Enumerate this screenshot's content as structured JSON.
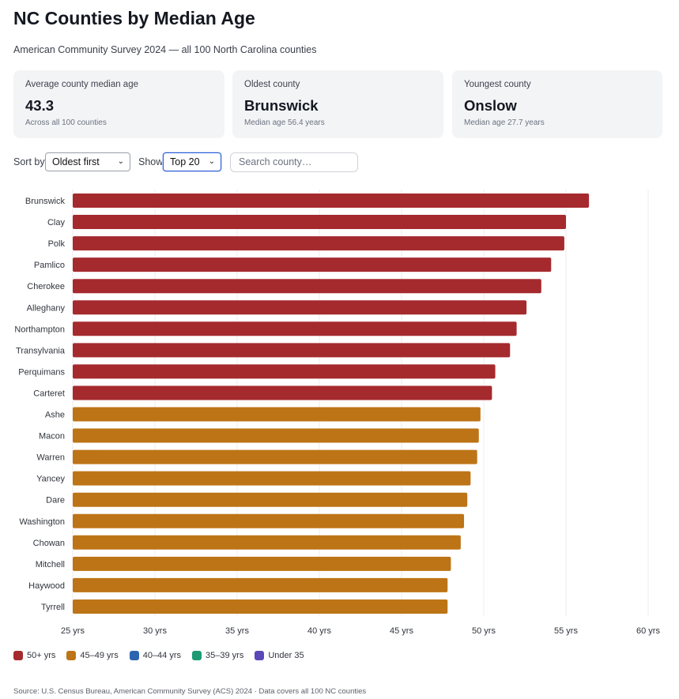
{
  "header": {
    "title": "NC Counties by Median Age",
    "subtitle": "American Community Survey 2024 — all 100 North Carolina counties"
  },
  "cards": [
    {
      "label": "Average county median age",
      "value": "43.3",
      "note": "Across all 100 counties"
    },
    {
      "label": "Oldest county",
      "value": "Brunswick",
      "note": "Median age 56.4 years"
    },
    {
      "label": "Youngest county",
      "value": "Onslow",
      "note": "Median age 27.7 years"
    }
  ],
  "controls": {
    "sort_label": "Sort by",
    "sort_value": "Oldest first",
    "show_label": "Show",
    "show_value": "Top 20",
    "search_placeholder": "Search county…"
  },
  "chart_data": {
    "type": "bar",
    "orientation": "horizontal",
    "categories": [
      "Brunswick",
      "Clay",
      "Polk",
      "Pamlico",
      "Cherokee",
      "Alleghany",
      "Northampton",
      "Transylvania",
      "Perquimans",
      "Carteret",
      "Ashe",
      "Macon",
      "Warren",
      "Yancey",
      "Dare",
      "Washington",
      "Chowan",
      "Mitchell",
      "Haywood",
      "Tyrrell"
    ],
    "values": [
      56.4,
      55.0,
      54.9,
      54.1,
      53.5,
      52.6,
      52.0,
      51.6,
      50.7,
      50.5,
      49.8,
      49.7,
      49.6,
      49.2,
      49.0,
      48.8,
      48.6,
      48.0,
      47.8,
      47.8
    ],
    "xlim": [
      25,
      60
    ],
    "xticks": [
      25,
      30,
      35,
      40,
      45,
      50,
      55,
      60
    ],
    "tick_suffix": " yrs",
    "grid": "vertical"
  },
  "legend": [
    {
      "label": "50+ yrs",
      "color": "#a52a2e",
      "min": 50
    },
    {
      "label": "45–49 yrs",
      "color": "#bd7416",
      "min": 45
    },
    {
      "label": "40–44 yrs",
      "color": "#2c64b0",
      "min": 40
    },
    {
      "label": "35–39 yrs",
      "color": "#1d9a74",
      "min": 35
    },
    {
      "label": "Under 35",
      "color": "#5a48b8",
      "min": 0
    }
  ],
  "source": "Source: U.S. Census Bureau, American Community Survey (ACS) 2024 · Data covers all 100 NC counties"
}
